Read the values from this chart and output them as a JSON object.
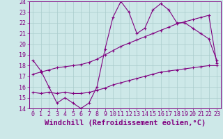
{
  "xlabel": "Windchill (Refroidissement éolien,°C)",
  "background_color": "#cde8e8",
  "line_color": "#800080",
  "xlim": [
    -0.5,
    23.5
  ],
  "ylim": [
    14,
    24
  ],
  "yticks": [
    14,
    15,
    16,
    17,
    18,
    19,
    20,
    21,
    22,
    23,
    24
  ],
  "xticks": [
    0,
    1,
    2,
    3,
    4,
    5,
    6,
    7,
    8,
    9,
    10,
    11,
    12,
    13,
    14,
    15,
    16,
    17,
    18,
    19,
    20,
    21,
    22,
    23
  ],
  "series1_x": [
    0,
    1,
    2,
    3,
    4,
    5,
    6,
    7,
    8,
    9,
    10,
    11,
    12,
    13,
    14,
    15,
    16,
    17,
    18,
    19,
    20,
    21,
    22,
    23
  ],
  "series1_y": [
    18.5,
    17.5,
    16.0,
    14.5,
    15.0,
    14.5,
    14.0,
    14.5,
    16.0,
    19.5,
    22.5,
    24.0,
    23.0,
    21.0,
    21.5,
    23.2,
    23.8,
    23.2,
    22.0,
    22.0,
    21.5,
    21.0,
    20.5,
    18.5
  ],
  "series2_x": [
    0,
    1,
    2,
    3,
    4,
    5,
    6,
    7,
    8,
    9,
    10,
    11,
    12,
    13,
    14,
    15,
    16,
    17,
    18,
    19,
    20,
    21,
    22,
    23
  ],
  "series2_y": [
    17.2,
    17.4,
    17.6,
    17.8,
    17.9,
    18.0,
    18.1,
    18.3,
    18.6,
    19.0,
    19.4,
    19.8,
    20.1,
    20.4,
    20.7,
    21.0,
    21.3,
    21.6,
    21.9,
    22.1,
    22.3,
    22.5,
    22.7,
    18.2
  ],
  "series3_x": [
    0,
    1,
    2,
    3,
    4,
    5,
    6,
    7,
    8,
    9,
    10,
    11,
    12,
    13,
    14,
    15,
    16,
    17,
    18,
    19,
    20,
    21,
    22,
    23
  ],
  "series3_y": [
    15.5,
    15.4,
    15.5,
    15.4,
    15.5,
    15.4,
    15.4,
    15.5,
    15.7,
    15.9,
    16.2,
    16.4,
    16.6,
    16.8,
    17.0,
    17.2,
    17.4,
    17.5,
    17.6,
    17.7,
    17.8,
    17.9,
    18.0,
    18.0
  ],
  "grid_color": "#aacccc",
  "tick_fontsize": 6,
  "xlabel_fontsize": 7.5
}
